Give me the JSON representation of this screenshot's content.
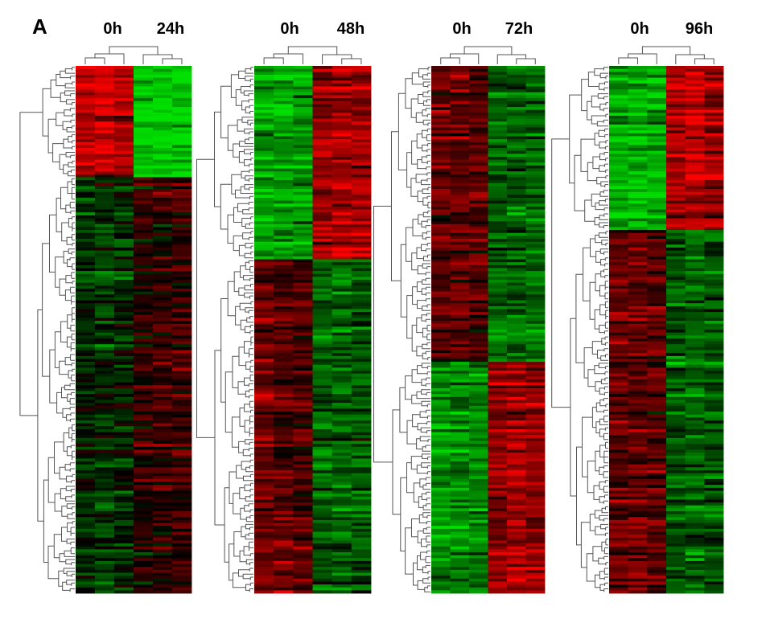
{
  "figure": {
    "panel_label": "A"
  },
  "chart_data": [
    {
      "type": "heatmap",
      "columns": [
        "0h",
        "0h",
        "0h",
        "24h",
        "24h",
        "24h"
      ],
      "column_group_labels": [
        "0h",
        "24h"
      ],
      "clusters": [
        {
          "rows": 38,
          "profile": [
            1.6,
            1.8,
            1.6,
            -1.9,
            -2.0,
            -2.1
          ]
        },
        {
          "rows": 142,
          "profile": [
            -0.4,
            -0.6,
            -0.4,
            0.3,
            0.4,
            0.5
          ]
        }
      ],
      "color_scale": {
        "low": "#00e000",
        "mid": "#000000",
        "high": "#ff0000"
      },
      "dendrogram": {
        "rows": true,
        "columns": true
      }
    },
    {
      "type": "heatmap",
      "columns": [
        "0h",
        "0h",
        "0h",
        "48h",
        "48h",
        "48h"
      ],
      "column_group_labels": [
        "0h",
        "48h"
      ],
      "clusters": [
        {
          "rows": 66,
          "profile": [
            -1.5,
            -1.6,
            -1.5,
            1.3,
            1.5,
            1.4
          ]
        },
        {
          "rows": 114,
          "profile": [
            0.9,
            0.8,
            0.7,
            -0.9,
            -0.9,
            -0.8
          ]
        }
      ],
      "color_scale": {
        "low": "#00e000",
        "mid": "#000000",
        "high": "#ff0000"
      },
      "dendrogram": {
        "rows": true,
        "columns": true
      }
    },
    {
      "type": "heatmap",
      "columns": [
        "0h",
        "0h",
        "0h",
        "72h",
        "72h",
        "72h"
      ],
      "column_group_labels": [
        "0h",
        "72h"
      ],
      "clusters": [
        {
          "rows": 101,
          "profile": [
            0.8,
            0.9,
            0.7,
            -0.9,
            -0.9,
            -1.0
          ]
        },
        {
          "rows": 79,
          "profile": [
            -1.4,
            -1.3,
            -1.3,
            1.2,
            1.4,
            1.2
          ]
        }
      ],
      "color_scale": {
        "low": "#00e000",
        "mid": "#000000",
        "high": "#ff0000"
      },
      "dendrogram": {
        "rows": true,
        "columns": true
      }
    },
    {
      "type": "heatmap",
      "columns": [
        "0h",
        "0h",
        "0h",
        "96h",
        "96h",
        "96h"
      ],
      "column_group_labels": [
        "0h",
        "96h"
      ],
      "clusters": [
        {
          "rows": 56,
          "profile": [
            -1.7,
            -1.8,
            -1.7,
            1.4,
            1.5,
            1.3
          ]
        },
        {
          "rows": 124,
          "profile": [
            0.9,
            0.9,
            0.8,
            -0.8,
            -0.9,
            -0.8
          ]
        }
      ],
      "color_scale": {
        "low": "#00e000",
        "mid": "#000000",
        "high": "#ff0000"
      },
      "dendrogram": {
        "rows": true,
        "columns": true
      }
    }
  ]
}
